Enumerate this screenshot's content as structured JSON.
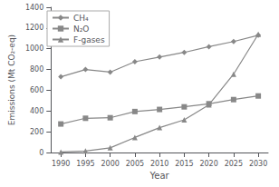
{
  "chart_data": {
    "type": "line",
    "x": [
      1990,
      1995,
      2000,
      2005,
      2010,
      2015,
      2020,
      2025,
      2030
    ],
    "series": [
      {
        "name": "CH₄",
        "color": "#888888",
        "marker": "diamond",
        "values": [
          730,
          800,
          775,
          875,
          920,
          965,
          1020,
          1070,
          1130
        ]
      },
      {
        "name": "N₂O",
        "color": "#888888",
        "marker": "square",
        "values": [
          275,
          330,
          335,
          395,
          415,
          440,
          470,
          510,
          545
        ]
      },
      {
        "name": "F-gases",
        "color": "#888888",
        "marker": "triangle",
        "values": [
          5,
          15,
          45,
          145,
          240,
          315,
          460,
          755,
          1140
        ]
      }
    ],
    "xlabel": "Year",
    "ylabel": "Emissions (Mt CO₂-eq)",
    "xlim": [
      1988,
      2032
    ],
    "xticks": [
      1990,
      1995,
      2000,
      2005,
      2010,
      2015,
      2020,
      2025,
      2030
    ],
    "ylim": [
      0,
      1400
    ],
    "yticks": [
      0,
      200,
      400,
      600,
      800,
      1000,
      1200,
      1400
    ],
    "grid": false,
    "legend": "upper left"
  }
}
